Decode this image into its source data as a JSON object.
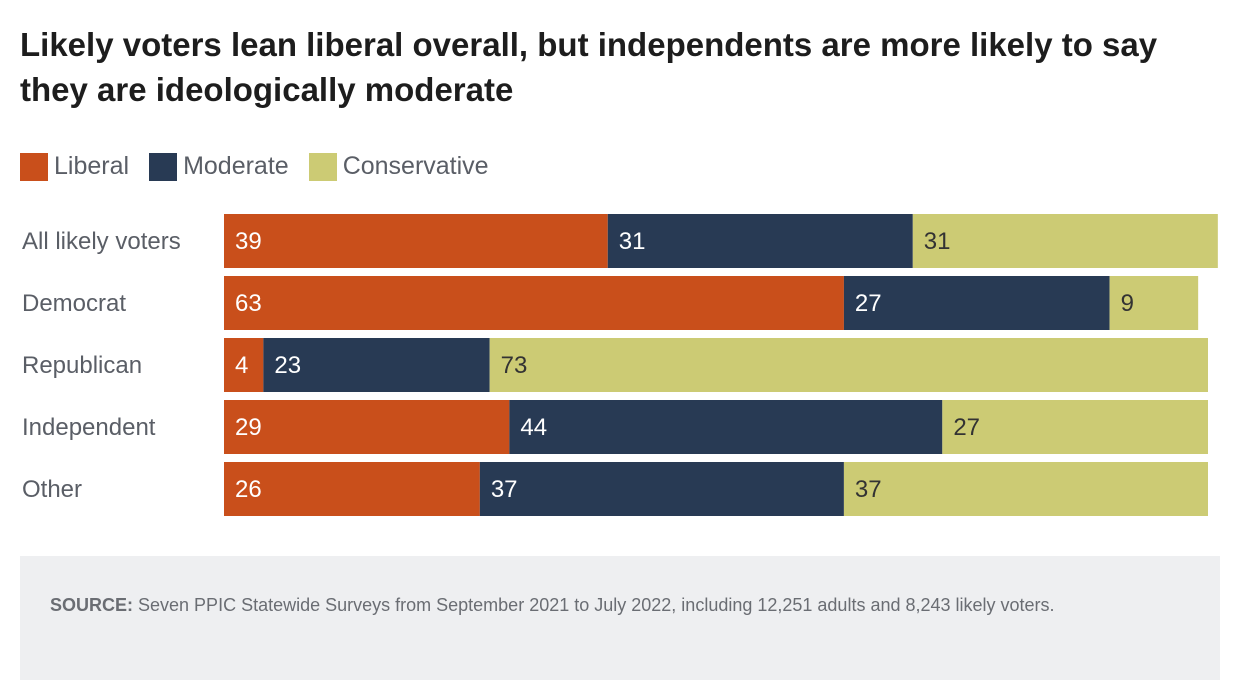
{
  "chart_data": {
    "type": "bar",
    "orientation": "horizontal",
    "stacked": true,
    "title": "Likely voters lean liberal overall, but independents are more likely to say they are ideologically moderate",
    "categories": [
      "All likely voters",
      "Democrat",
      "Republican",
      "Independent",
      "Other"
    ],
    "series": [
      {
        "name": "Liberal",
        "color": "#c94f1b",
        "values": [
          39,
          63,
          4,
          29,
          26
        ]
      },
      {
        "name": "Moderate",
        "color": "#283a54",
        "values": [
          31,
          27,
          23,
          44,
          37
        ]
      },
      {
        "name": "Conservative",
        "color": "#cccb74",
        "values": [
          31,
          9,
          73,
          27,
          37
        ]
      }
    ],
    "data_labels": true,
    "legend_placement": "top-left",
    "grid": false,
    "xlim": [
      0,
      100
    ]
  },
  "source": {
    "label": "SOURCE:",
    "text": " Seven PPIC Statewide Surveys from September 2021 to July 2022, including 12,251 adults and 8,243 likely voters."
  }
}
